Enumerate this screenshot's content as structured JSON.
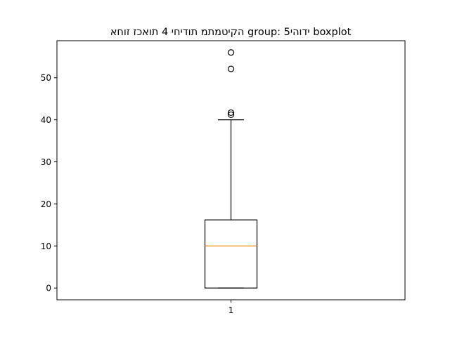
{
  "chart_data": {
    "type": "boxplot",
    "title": "הקיטמתמ תודיחי 4 תואכז זוחא  group: ידוהי5 boxplot",
    "xlabel": "",
    "ylabel": "",
    "categories": [
      "1"
    ],
    "ylim": [
      -2.8,
      58.8
    ],
    "yticks": [
      0,
      10,
      20,
      30,
      40,
      50
    ],
    "xticks": [
      "1"
    ],
    "grid": false,
    "boxes": [
      {
        "category": "1",
        "whisker_low": 0,
        "q1": 0,
        "median": 10,
        "q3": 16.2,
        "whisker_high": 40,
        "outliers": [
          41.2,
          41.7,
          52.1,
          56.0
        ]
      }
    ],
    "colors": {
      "box": "#000000",
      "median": "#ff7f0e",
      "axes": "#000000"
    }
  }
}
